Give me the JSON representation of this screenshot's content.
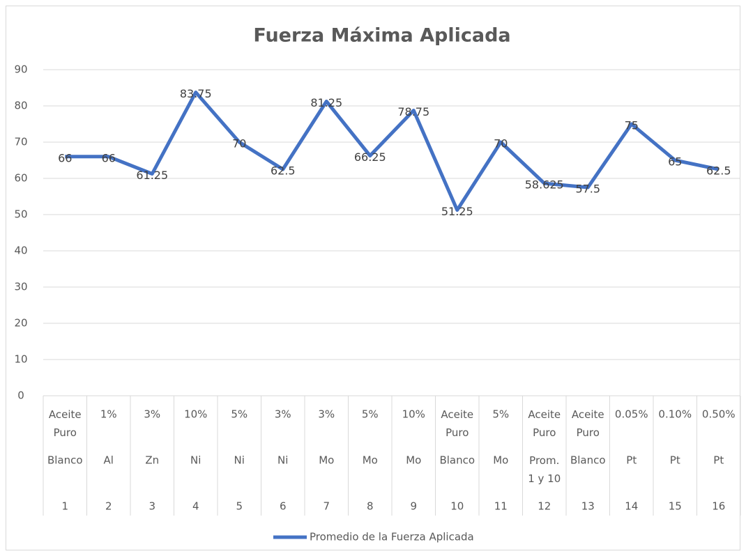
{
  "chart_data": {
    "type": "line",
    "title": "Fuerza Máxima Aplicada",
    "category_levels": [
      [
        "Aceite Puro",
        "1%",
        "3%",
        "10%",
        "5%",
        "3%",
        "3%",
        "5%",
        "10%",
        "Aceite Puro",
        "5%",
        "Aceite Puro",
        "Aceite Puro",
        "0.05%",
        "0.10%",
        "0.50%"
      ],
      [
        "Blanco",
        "Al",
        "Zn",
        "Ni",
        "Ni",
        "Ni",
        "Mo",
        "Mo",
        "Mo",
        "Blanco",
        "Mo",
        "Prom. 1 y 10",
        "Blanco",
        "Pt",
        "Pt",
        "Pt"
      ],
      [
        "1",
        "2",
        "3",
        "4",
        "5",
        "6",
        "7",
        "8",
        "9",
        "10",
        "11",
        "12",
        "13",
        "14",
        "15",
        "16"
      ]
    ],
    "series": [
      {
        "name": "Promedio de la Fuerza Aplicada",
        "color": "#4472c4",
        "values": [
          66,
          66,
          61.25,
          83.75,
          70,
          62.5,
          81.25,
          66.25,
          78.75,
          51.25,
          70,
          58.625,
          57.5,
          75,
          65,
          62.5
        ]
      }
    ],
    "ylim": [
      0,
      90
    ],
    "yticks": [
      0,
      10,
      20,
      30,
      40,
      50,
      60,
      70,
      80,
      90
    ],
    "grid": true,
    "data_labels": true,
    "legend": "bottom"
  }
}
